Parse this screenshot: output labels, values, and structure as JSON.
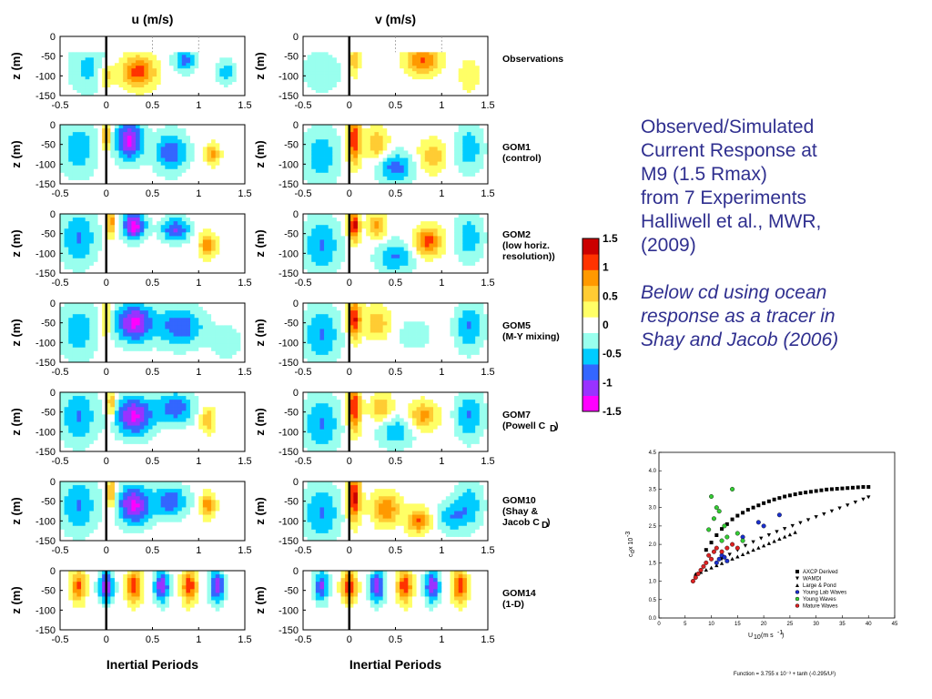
{
  "chart_data": [
    {
      "type": "heatmap",
      "description_panels": "contour grid of currents",
      "columns": [
        {
          "key": "u",
          "title": "u (m/s)"
        },
        {
          "key": "v",
          "title": "v (m/s)"
        }
      ],
      "xlim": [
        -0.5,
        1.5
      ],
      "xticks": [
        "-0.5",
        "0",
        "0.5",
        "1",
        "1.5"
      ],
      "ylim": [
        -150,
        0
      ],
      "yticks": [
        "0",
        "-50",
        "-100",
        "-150"
      ],
      "ylabel": "z (m)",
      "xlabel": "Inertial Periods",
      "rows": [
        {
          "name": "Observations",
          "lines": [
            "Observations"
          ]
        },
        {
          "name": "GOM1",
          "lines": [
            "GOM1",
            "(control)"
          ]
        },
        {
          "name": "GOM2",
          "lines": [
            "GOM2",
            "(low horiz.",
            "resolution))"
          ]
        },
        {
          "name": "GOM5",
          "lines": [
            "GOM5",
            "(M-Y mixing)"
          ]
        },
        {
          "name": "GOM7",
          "lines": [
            "GOM7",
            "(Powell C",
            "D",
            ")"
          ]
        },
        {
          "name": "GOM10",
          "lines": [
            "GOM10",
            "(Shay &",
            "Jacob C",
            "D",
            ")"
          ]
        },
        {
          "name": "GOM14",
          "lines": [
            "GOM14",
            "(1-D)"
          ]
        }
      ],
      "colorbar": {
        "range": [
          -1.5,
          1.5
        ],
        "ticks": [
          "1.5",
          "1",
          "0.5",
          "0",
          "-0.5",
          "-1",
          "-1.5"
        ],
        "colors": [
          "#ff00ff",
          "#9933ff",
          "#3366ff",
          "#00ccff",
          "#99ffee",
          "#ffffff",
          "#ffff66",
          "#ffcc33",
          "#ff9900",
          "#ff3300",
          "#cc0000"
        ]
      }
    },
    {
      "type": "scatter",
      "xlabel": "U",
      "xlabel_sub": "10",
      "xlabel_unit": "(m s",
      "xlabel_sup": "-1",
      "xlabel_end": ")",
      "ylabel": "c",
      "ylabel_sub": "d",
      "ylabel_mid": " x 10",
      "ylabel_sup": "-3",
      "xlim": [
        0,
        45
      ],
      "ylim": [
        0,
        4.5
      ],
      "xticks": [
        "0",
        "5",
        "10",
        "15",
        "20",
        "25",
        "30",
        "35",
        "40",
        "45"
      ],
      "yticks": [
        "0.0",
        "0.5",
        "1.0",
        "1.5",
        "2.0",
        "2.5",
        "3.0",
        "3.5",
        "4.0",
        "4.5"
      ],
      "legend_position": "bottom-right",
      "series": [
        {
          "name": "AXCP Derived",
          "marker": "square",
          "color": "#000000",
          "x": [
            9,
            10,
            11,
            12,
            13,
            14,
            15,
            16,
            17,
            18,
            19,
            20,
            21,
            22,
            23,
            24,
            25,
            26,
            27,
            28,
            29,
            30,
            31,
            32,
            33,
            34,
            35,
            36,
            37,
            38,
            39,
            40
          ],
          "y": [
            1.85,
            2.05,
            2.25,
            2.42,
            2.55,
            2.68,
            2.78,
            2.86,
            2.94,
            3.0,
            3.06,
            3.12,
            3.17,
            3.22,
            3.26,
            3.3,
            3.33,
            3.36,
            3.39,
            3.41,
            3.43,
            3.45,
            3.47,
            3.49,
            3.5,
            3.51,
            3.52,
            3.53,
            3.54,
            3.55,
            3.56,
            3.56
          ]
        },
        {
          "name": "WAMDI",
          "marker": "triangle-down",
          "color": "#000000",
          "x": [
            12,
            13.5,
            15,
            16.5,
            18,
            19.5,
            21,
            22.5,
            24,
            25.5,
            27,
            28.5,
            30,
            31.5,
            33,
            34.5,
            36,
            37.5,
            39,
            40
          ],
          "y": [
            1.6,
            1.72,
            1.84,
            1.96,
            2.06,
            2.16,
            2.25,
            2.34,
            2.42,
            2.5,
            2.58,
            2.66,
            2.74,
            2.82,
            2.9,
            2.98,
            3.06,
            3.14,
            3.22,
            3.28
          ]
        },
        {
          "name": "Large & Pond",
          "marker": "triangle-up",
          "color": "#000000",
          "x": [
            7,
            8,
            9,
            10,
            11,
            12,
            13,
            14,
            15,
            16,
            17,
            18,
            19,
            20,
            21,
            22,
            23,
            24,
            25,
            26
          ],
          "y": [
            1.2,
            1.25,
            1.31,
            1.37,
            1.43,
            1.49,
            1.55,
            1.61,
            1.67,
            1.73,
            1.79,
            1.85,
            1.91,
            1.97,
            2.03,
            2.09,
            2.15,
            2.21,
            2.27,
            2.33
          ]
        },
        {
          "name": "Young Lab Waves",
          "marker": "circle",
          "color": "#1a2fcc",
          "x": [
            11,
            11.5,
            12,
            12.5,
            13,
            16,
            19,
            20,
            23
          ],
          "y": [
            1.5,
            1.6,
            1.7,
            1.65,
            1.55,
            2.2,
            2.6,
            2.5,
            2.8
          ]
        },
        {
          "name": "Young Waves",
          "marker": "circle",
          "color": "#33cc33",
          "x": [
            9.5,
            10,
            10.5,
            11,
            11.5,
            12,
            12.5,
            13,
            14,
            15,
            16
          ],
          "y": [
            2.4,
            3.3,
            2.7,
            3.0,
            2.9,
            2.1,
            2.5,
            2.2,
            3.5,
            2.3,
            2.1
          ]
        },
        {
          "name": "Mature Waves",
          "marker": "circle",
          "color": "#dd2222",
          "x": [
            6.5,
            7,
            7.5,
            8,
            8.5,
            9,
            9.5,
            10,
            10.5,
            11,
            12,
            13,
            14,
            15
          ],
          "y": [
            1.0,
            1.1,
            1.2,
            1.3,
            1.4,
            1.5,
            1.7,
            1.6,
            1.8,
            1.9,
            1.8,
            1.9,
            2.0,
            1.9
          ]
        }
      ],
      "function_text": "Function = 3.755 x 10⁻³ + tanh (-0.295/U²)"
    }
  ],
  "notes": {
    "line1": "Observed/Simulated",
    "line2": "Current Response at",
    "line3": "M9 (1.5 Rmax)",
    "line4": "from 7 Experiments",
    "line5": "Halliwell et al., MWR,",
    "line6": "(2009)",
    "italic1": "Below cd using ocean",
    "italic2": "response as a tracer in",
    "italic3": "Shay and Jacob (2006)"
  }
}
